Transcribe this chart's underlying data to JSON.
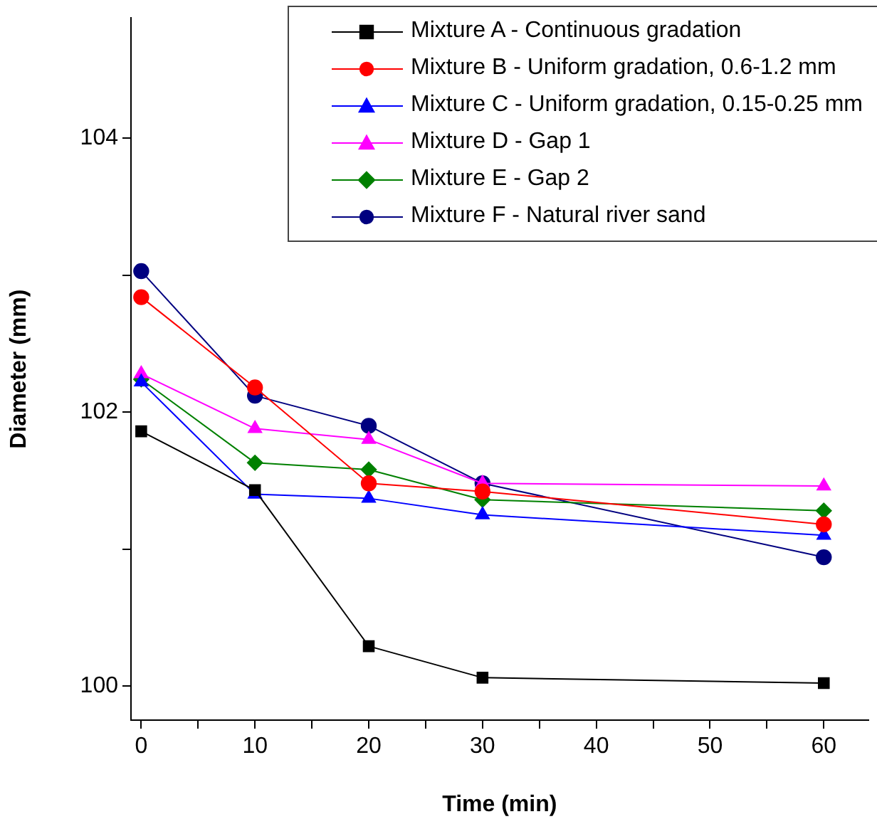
{
  "chart_data": {
    "type": "line",
    "xlabel": "Time (min)",
    "ylabel": "Diameter (mm)",
    "x": [
      0,
      10,
      20,
      30,
      60
    ],
    "xlim": [
      -0.9,
      63.9
    ],
    "xticks": [
      0,
      {
        "value": 5,
        "label": null
      },
      10,
      {
        "value": 15,
        "label": null
      },
      20,
      {
        "value": 25,
        "label": null
      },
      30,
      {
        "value": 35,
        "label": null
      },
      40,
      {
        "value": 45,
        "label": null
      },
      50,
      {
        "value": 55,
        "label": null
      },
      60
    ],
    "ylim": [
      99.75,
      104.88
    ],
    "yticks": [
      100,
      {
        "value": 101,
        "label": null
      },
      102,
      {
        "value": 103,
        "label": null
      },
      104
    ],
    "grid": false,
    "legend": "top right",
    "line_style": "solid",
    "series": [
      {
        "name": "Mixture A - Continuous gradation",
        "color": "#000000",
        "marker": "square",
        "values": [
          101.86,
          101.43,
          100.29,
          100.06,
          100.02
        ]
      },
      {
        "name": "Mixture B - Uniform gradation, 0.6-1.2 mm",
        "color": "#ff0000",
        "marker": "circle",
        "values": [
          102.84,
          102.18,
          101.48,
          101.42,
          101.18
        ]
      },
      {
        "name": "Mixture C - Uniform gradation, 0.15-0.25 mm",
        "color": "#0000ff",
        "marker": "triangle",
        "values": [
          102.22,
          101.4,
          101.37,
          101.25,
          101.1
        ]
      },
      {
        "name": "Mixture D - Gap 1",
        "color": "#ff00ff",
        "marker": "triangle",
        "values": [
          102.28,
          101.88,
          101.8,
          101.48,
          101.46
        ]
      },
      {
        "name": "Mixture E - Gap 2",
        "color": "#008000",
        "marker": "diamond",
        "values": [
          102.24,
          101.63,
          101.58,
          101.36,
          101.28
        ]
      },
      {
        "name": "Mixture F - Natural river sand",
        "color": "#000080",
        "marker": "circle",
        "values": [
          103.03,
          102.12,
          101.9,
          101.48,
          100.94
        ]
      }
    ]
  }
}
